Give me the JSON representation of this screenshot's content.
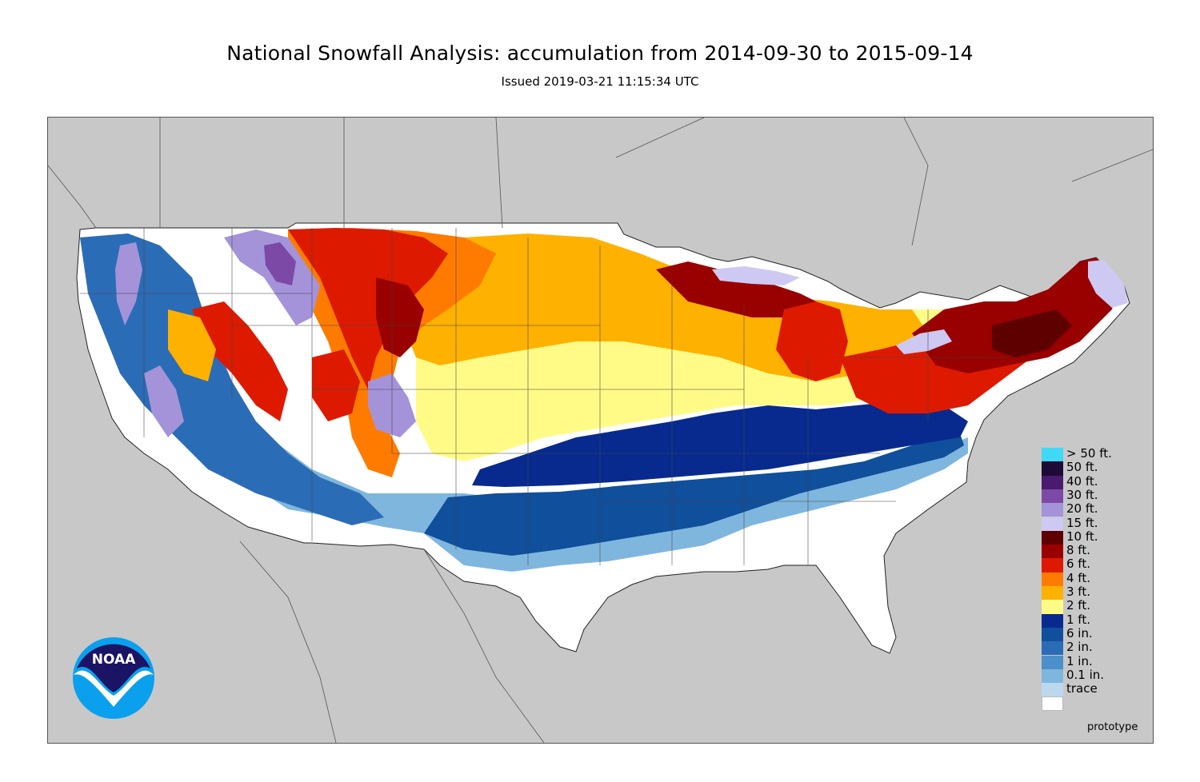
{
  "header": {
    "title": "National Snowfall Analysis: accumulation from 2014-09-30 to 2015-09-14",
    "issued": "Issued 2019-03-21 11:15:34 UTC"
  },
  "logo": {
    "text": "NOAA"
  },
  "stamp": "prototype",
  "colors": {
    "background_land": "#c8c8c8",
    "water": "#c8c8c8",
    "border": "#333333"
  },
  "legend": {
    "items": [
      {
        "label": "> 50 ft.",
        "color": "#3fd8f5"
      },
      {
        "label": "50 ft.",
        "color": "#1e0a36"
      },
      {
        "label": "40 ft.",
        "color": "#4a1a6e"
      },
      {
        "label": "30 ft.",
        "color": "#7c4aa6"
      },
      {
        "label": "20 ft.",
        "color": "#a493d9"
      },
      {
        "label": "15 ft.",
        "color": "#cdc9f2"
      },
      {
        "label": "10 ft.",
        "color": "#5e0000"
      },
      {
        "label": "8 ft.",
        "color": "#990000"
      },
      {
        "label": "6 ft.",
        "color": "#dd1a00"
      },
      {
        "label": "4 ft.",
        "color": "#ff7b00"
      },
      {
        "label": "3 ft.",
        "color": "#ffb100"
      },
      {
        "label": "2 ft.",
        "color": "#fffb86"
      },
      {
        "label": "1 ft.",
        "color": "#082a8e"
      },
      {
        "label": "6 in.",
        "color": "#0f4f9b"
      },
      {
        "label": "2 in.",
        "color": "#2b6cb6"
      },
      {
        "label": "1 in.",
        "color": "#4b90c8"
      },
      {
        "label": "0.1 in.",
        "color": "#7fb6de"
      },
      {
        "label": "trace",
        "color": "#bcd8ee"
      },
      {
        "label": "",
        "color": "#ffffff"
      }
    ]
  }
}
